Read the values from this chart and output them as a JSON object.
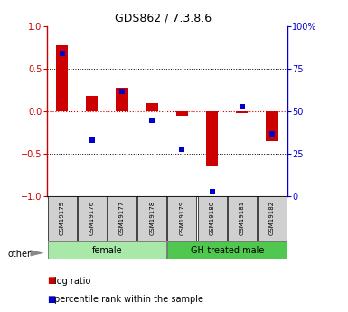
{
  "title": "GDS862 / 7.3.8.6",
  "samples": [
    "GSM19175",
    "GSM19176",
    "GSM19177",
    "GSM19178",
    "GSM19179",
    "GSM19180",
    "GSM19181",
    "GSM19182"
  ],
  "log_ratio": [
    0.78,
    0.18,
    0.28,
    0.1,
    -0.05,
    -0.65,
    -0.02,
    -0.35
  ],
  "percentile_rank": [
    84,
    33,
    62,
    45,
    28,
    3,
    53,
    37
  ],
  "groups": [
    {
      "label": "female",
      "start": 0,
      "end": 4,
      "color": "#a8e8a8"
    },
    {
      "label": "GH-treated male",
      "start": 4,
      "end": 8,
      "color": "#50C850"
    }
  ],
  "left_axis_color": "#cc0000",
  "right_axis_color": "#0000cc",
  "ylim_left": [
    -1,
    1
  ],
  "ylim_right": [
    0,
    100
  ],
  "yticks_left": [
    -1,
    -0.5,
    0,
    0.5,
    1
  ],
  "yticks_right": [
    0,
    25,
    50,
    75,
    100
  ],
  "bar_color": "#cc0000",
  "dot_color": "#0000cc",
  "background_color": "#ffffff",
  "legend_log_ratio": "log ratio",
  "legend_percentile": "percentile rank within the sample",
  "other_label": "other"
}
